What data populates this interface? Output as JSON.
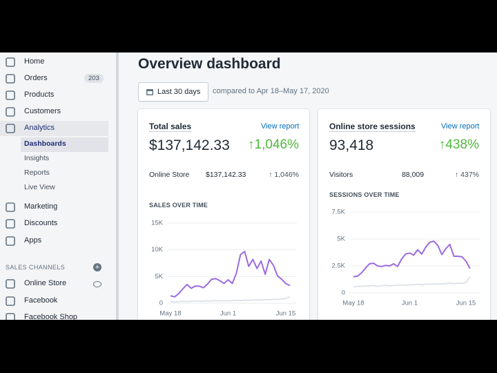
{
  "sidebar": {
    "nav": [
      {
        "label": "Home"
      },
      {
        "label": "Orders",
        "badge": "203"
      },
      {
        "label": "Products"
      },
      {
        "label": "Customers"
      },
      {
        "label": "Analytics",
        "children": [
          "Dashboards",
          "Insights",
          "Reports",
          "Live View"
        ]
      },
      {
        "label": "Marketing"
      },
      {
        "label": "Discounts"
      },
      {
        "label": "Apps"
      }
    ],
    "sales_channels": {
      "title": "SALES CHANNELS",
      "items": [
        "Online Store",
        "Facebook",
        "Facebook Shop"
      ]
    }
  },
  "header": {
    "title": "Overview dashboard",
    "date_button": "Last 30 days",
    "comparison": "compared to Apr 18–May 17, 2020"
  },
  "cards": [
    {
      "title": "Total sales",
      "link": "View report",
      "value": "$137,142.33",
      "change": "↑1,046%",
      "breakdown": {
        "label": "Online Store",
        "value": "$137,142.33",
        "change": "↑ 1,046%"
      },
      "chart_data": {
        "type": "line",
        "title": "SALES OVER TIME",
        "categories": [
          "May 18",
          null,
          null,
          null,
          null,
          null,
          null,
          null,
          null,
          null,
          null,
          null,
          null,
          null,
          "Jun 1",
          null,
          null,
          null,
          null,
          null,
          null,
          null,
          null,
          null,
          null,
          null,
          null,
          null,
          "Jun 15",
          null
        ],
        "series": [
          {
            "color": "#dfe3e8",
            "values": [
              300,
              250,
              300,
              350,
              300,
              350,
              400,
              350,
              400,
              450,
              400,
              500,
              450,
              500,
              450,
              500,
              550,
              500,
              600,
              550,
              600,
              650,
              600,
              700,
              650,
              750,
              700,
              800,
              900,
              1200
            ]
          },
          {
            "color": "#9c6ade",
            "values": [
              1400,
              1200,
              1800,
              2700,
              3500,
              2800,
              3200,
              3200,
              2900,
              3600,
              4500,
              4600,
              4200,
              3700,
              4400,
              3700,
              5600,
              9100,
              9700,
              6900,
              8200,
              6500,
              7900,
              5400,
              8200,
              7100,
              5100,
              4500,
              3700,
              3300
            ]
          }
        ],
        "ylim": [
          0,
          15000
        ],
        "yticks": [
          0,
          {
            "value": 5000,
            "label": "5K"
          },
          {
            "value": 10000,
            "label": "10K"
          },
          {
            "value": 15000,
            "label": "15K"
          }
        ],
        "grid": true
      }
    },
    {
      "title": "Online store sessions",
      "link": "View report",
      "value": "93,418",
      "change": "↑438%",
      "breakdown": {
        "label": "Visitors",
        "value": "88,009",
        "change": "↑ 437%"
      },
      "chart_data": {
        "type": "line",
        "title": "SESSIONS OVER TIME",
        "categories": [
          "May 18",
          null,
          null,
          null,
          null,
          null,
          null,
          null,
          null,
          null,
          null,
          null,
          null,
          null,
          "Jun 1",
          null,
          null,
          null,
          null,
          null,
          null,
          null,
          null,
          null,
          null,
          null,
          null,
          null,
          "Jun 15",
          null
        ],
        "series": [
          {
            "color": "#dfe3e8",
            "values": [
              550,
              600,
              600,
              650,
              650,
              700,
              600,
              650,
              700,
              650,
              700,
              700,
              750,
              700,
              750,
              750,
              800,
              750,
              800,
              800,
              850,
              800,
              850,
              850,
              900,
              850,
              900,
              900,
              950,
              1500
            ]
          },
          {
            "color": "#9c6ade",
            "values": [
              1500,
              1550,
              1850,
              2300,
              2700,
              2750,
              2500,
              2450,
              2550,
              2500,
              2700,
              2450,
              3150,
              3600,
              3700,
              3500,
              4000,
              3600,
              4250,
              4700,
              4800,
              4400,
              3550,
              4100,
              4500,
              3400,
              3400,
              3350,
              2950,
              2250
            ]
          }
        ],
        "ylim": [
          0,
          7500
        ],
        "yticks": [
          0,
          {
            "value": 2500,
            "label": "2.5K"
          },
          {
            "value": 5000,
            "label": "5K"
          },
          {
            "value": 7500,
            "label": "7.5K"
          }
        ],
        "grid": true
      }
    }
  ]
}
